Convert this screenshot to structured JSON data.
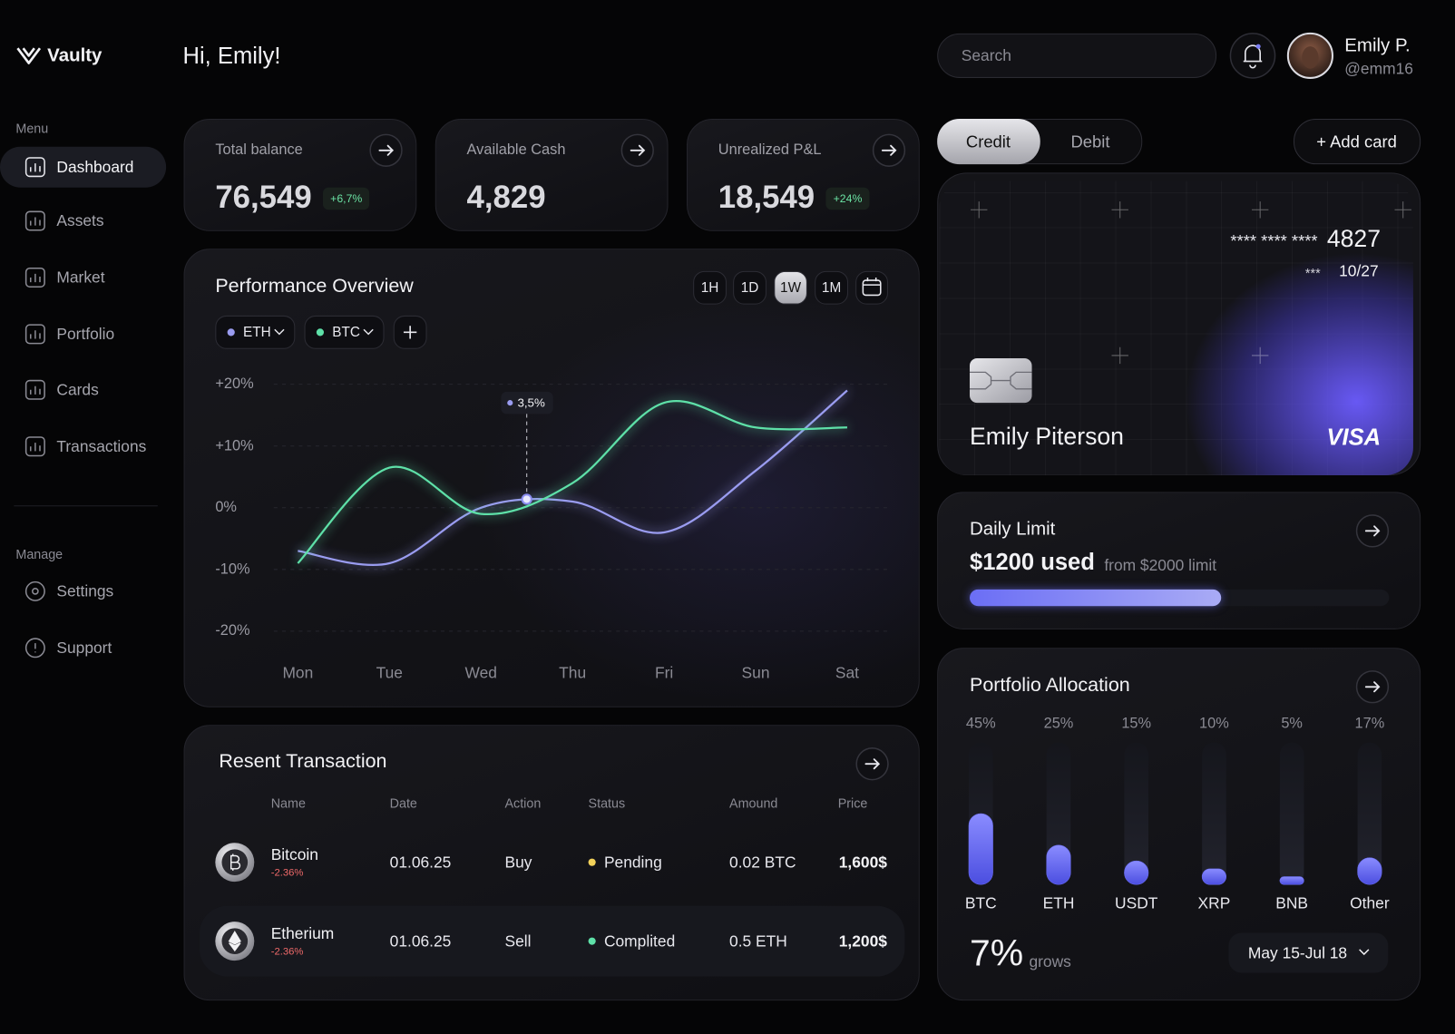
{
  "sidebar": {
    "brand": "Vaulty",
    "menu_title": "Menu",
    "menu": [
      "Dashboard",
      "Assets",
      "Market",
      "Portfolio",
      "Cards",
      "Transactions"
    ],
    "active_index": 0,
    "manage_title": "Manage",
    "manage": [
      "Settings",
      "Support"
    ]
  },
  "header": {
    "greeting": "Hi, Emily!",
    "search": "Search",
    "user_name": "Emily P.",
    "user_handle": "@emm16"
  },
  "stats": [
    {
      "label": "Total balance",
      "value": "76,549",
      "change": "+6,7%"
    },
    {
      "label": "Available Cash",
      "value": "4,829"
    },
    {
      "label": "Unrealized P&L",
      "value": "18,549",
      "change": "+24%"
    }
  ],
  "performance": {
    "ranges": [
      "1H",
      "1D",
      "1W",
      "1M"
    ],
    "active_range_index": 2
  },
  "transactions": {
    "title": "Resent Transaction",
    "columns": [
      "Name",
      "Date",
      "Action",
      "Status",
      "Amound",
      "Price"
    ],
    "rows": [
      {
        "name": "Bitcoin",
        "change": "-2.36%",
        "date": "01.06.25",
        "action": "Buy",
        "status": "Pending",
        "status_color": "#f2d15a",
        "amount": "0.02 BTC",
        "price": "1,600$"
      },
      {
        "name": "Etherium",
        "change": "-2.36%",
        "date": "01.06.25",
        "action": "Sell",
        "status": "Complited",
        "status_color": "#5ee0a8",
        "amount": "0.5 ETH",
        "price": "1,200$"
      }
    ]
  },
  "card_panel": {
    "tabs": [
      "Credit",
      "Debit"
    ],
    "active_tab_index": 0,
    "add": "+ Add card",
    "number_mask": "**** **** ****",
    "number_last": "4827",
    "cvv_mask": "***",
    "expiry": "10/27",
    "holder": "Emily Piterson",
    "brand": "VISA"
  },
  "daily_limit": {
    "title": "Daily Limit",
    "used_value": 1200,
    "used_label": "$1200 used",
    "limit_value": 2000,
    "limit_label": "from $2000 limit"
  },
  "chart_data": [
    {
      "type": "line",
      "title": "Performance Overview",
      "categories": [
        "Mon",
        "Tue",
        "Wed",
        "Thu",
        "Fri",
        "Sun",
        "Sat"
      ],
      "series": [
        {
          "name": "ETH",
          "color": "#9a9cf0",
          "values": [
            -7,
            -9,
            0,
            1,
            -4,
            6,
            19
          ]
        },
        {
          "name": "BTC",
          "color": "#5ee0a8",
          "values": [
            -9,
            6.5,
            -1,
            4,
            17,
            13,
            13
          ]
        }
      ],
      "ylim": [
        -20,
        20
      ],
      "yticks": [
        {
          "value": 20,
          "label": "+20%"
        },
        {
          "value": 10,
          "label": "+10%"
        },
        {
          "value": 0,
          "label": "0%"
        },
        {
          "value": -10,
          "label": "-10%"
        },
        {
          "value": -20,
          "label": "-20%"
        }
      ],
      "grid": true,
      "annotation": "3,5%"
    },
    {
      "type": "bar",
      "title": "Portfolio Allocation",
      "categories": [
        "BTC",
        "ETH",
        "USDT",
        "XRP",
        "BNB",
        "Other"
      ],
      "values": [
        45,
        25,
        15,
        10,
        5,
        17
      ],
      "value_labels": [
        "45%",
        "25%",
        "15%",
        "10%",
        "5%",
        "17%"
      ],
      "color": "#6b6ef5",
      "ylim": [
        0,
        90
      ]
    }
  ],
  "allocation_footer": {
    "growth": "7%",
    "growth_label": "grows",
    "period": "May 15-Jul 18"
  }
}
